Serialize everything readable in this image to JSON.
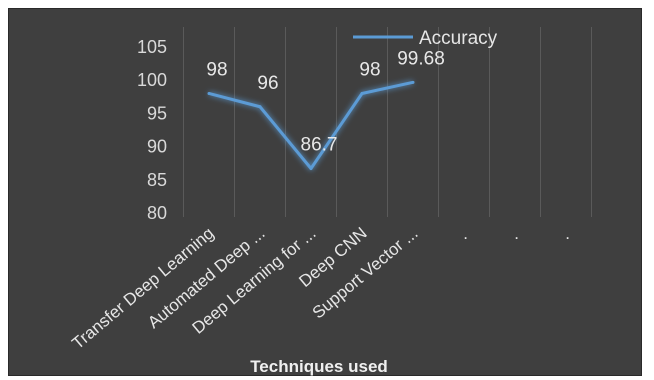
{
  "chart_data": {
    "type": "line",
    "title": "",
    "xlabel": "Techniques used",
    "ylabel": "",
    "categories": [
      "Transfer Deep Learning",
      "Automated Deep ...",
      "Deep Learning for ...",
      "Deep CNN",
      "Support Vector ..."
    ],
    "extra_categories": [
      ".",
      ".",
      "."
    ],
    "series": [
      {
        "name": "Accuracy",
        "values": [
          98,
          96,
          86.7,
          98,
          99.68
        ],
        "labels": [
          "98",
          "96",
          "86.7",
          "98",
          "99.68"
        ]
      }
    ],
    "ylim": [
      80,
      105
    ],
    "yticks": [
      80,
      85,
      90,
      95,
      100,
      105
    ],
    "grid": "vertical",
    "legend": "top",
    "colors": {
      "line": "#5b9bd5",
      "background": "#3f3f3f",
      "grid": "#5a5a5a",
      "text": "#d9d9d9"
    }
  }
}
